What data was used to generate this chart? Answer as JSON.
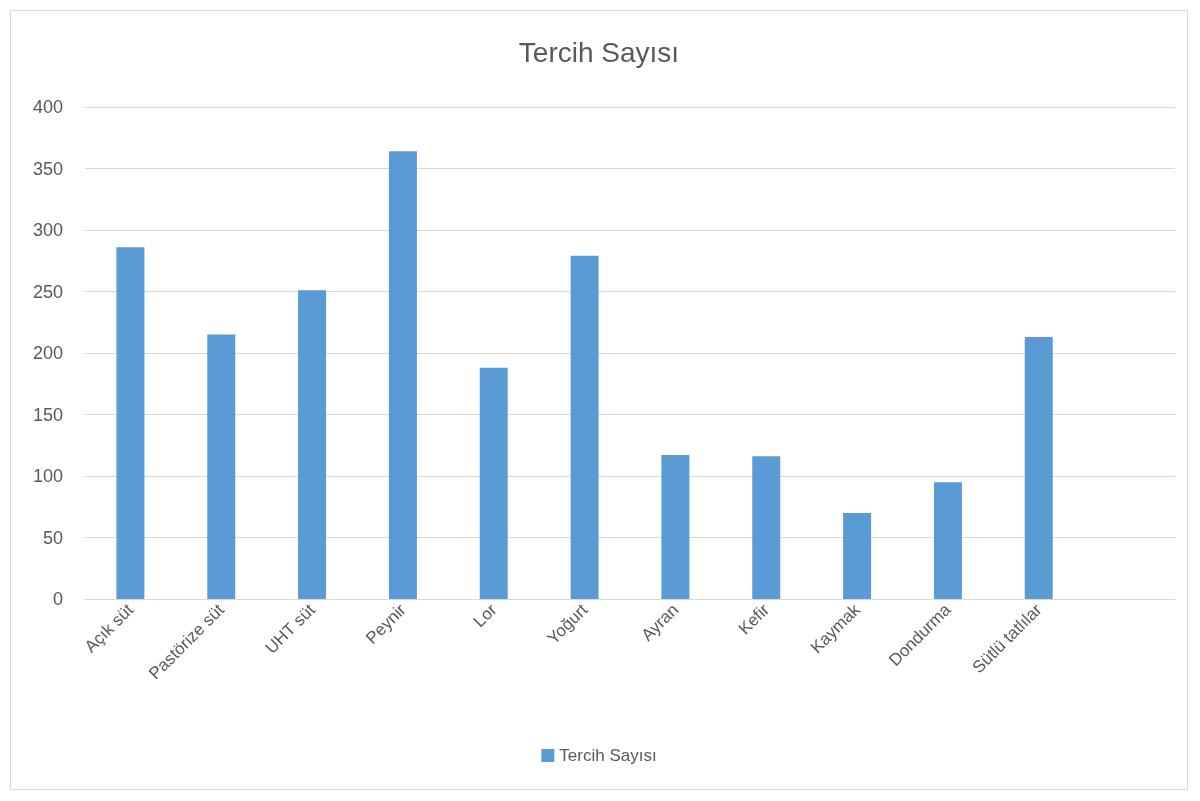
{
  "chart_data": {
    "type": "bar",
    "title": "Tercih Sayısı",
    "categories": [
      "Açık süt",
      "Pastörize süt",
      "UHT süt",
      "Peynir",
      "Lor",
      "Yoğurt",
      "Ayran",
      "Kefir",
      "Kaymak",
      "Dondurma",
      "Sütlü tatlılar",
      null
    ],
    "series": [
      {
        "name": "Tercih Sayısı",
        "color": "#5b9bd5",
        "values": [
          286,
          215,
          251,
          364,
          188,
          279,
          117,
          116,
          70,
          95,
          213,
          null
        ]
      }
    ],
    "ylim": [
      0,
      400
    ],
    "yticks": [
      0,
      50,
      100,
      150,
      200,
      250,
      300,
      350,
      400
    ],
    "grid": "y",
    "legend": "bottom"
  }
}
